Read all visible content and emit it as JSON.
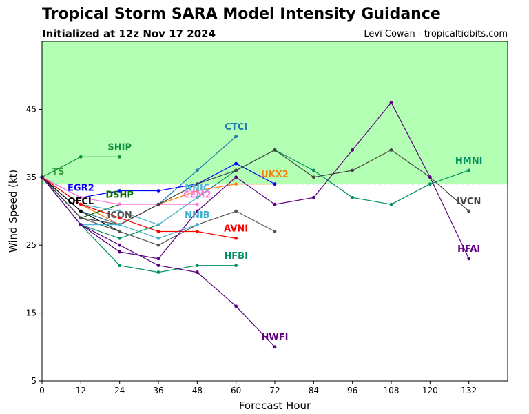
{
  "header": {
    "title": "Tropical Storm SARA Model Intensity Guidance",
    "subtitle": "Initialized at 12z Nov 17 2024",
    "credit": "Levi Cowan - tropicaltidbits.com"
  },
  "chart_data": {
    "type": "line",
    "title": "Tropical Storm SARA Model Intensity Guidance",
    "subtitle": "Initialized at 12z Nov 17 2024",
    "xlabel": "Forecast Hour",
    "ylabel": "Wind Speed (kt)",
    "xlim": [
      0,
      144
    ],
    "ylim": [
      5,
      55
    ],
    "xticks": [
      0,
      12,
      24,
      36,
      48,
      60,
      72,
      84,
      96,
      108,
      120,
      132
    ],
    "yticks": [
      5,
      15,
      25,
      35,
      45
    ],
    "ts_band": {
      "label": "TS",
      "from": 34,
      "to": 55,
      "color": "#b3ffb3"
    },
    "series": [
      {
        "name": "SHIP",
        "color": "#109040",
        "x": [
          0,
          12,
          24
        ],
        "y": [
          35,
          38,
          38
        ],
        "label_at": [
          24,
          39
        ]
      },
      {
        "name": "CTCI",
        "color": "#1f77b4",
        "x": [
          0,
          12,
          24,
          36,
          48,
          60
        ],
        "y": [
          35,
          30,
          28,
          31,
          36,
          41
        ],
        "label_at": [
          60,
          42
        ]
      },
      {
        "name": "HMNI",
        "color": "#009060",
        "x": [
          0,
          12,
          24,
          36,
          48,
          60,
          72,
          84,
          96,
          108,
          120,
          132
        ],
        "y": [
          35,
          28,
          26,
          28,
          32,
          36,
          39,
          36,
          32,
          31,
          34,
          36
        ],
        "label_at": [
          132,
          37
        ]
      },
      {
        "name": "UKX2",
        "color": "#ff7f0e",
        "x": [
          0,
          12,
          24,
          36,
          48,
          60,
          72
        ],
        "y": [
          35,
          31,
          28,
          31,
          33,
          34,
          34
        ],
        "label_at": [
          72,
          35
        ]
      },
      {
        "name": "EGR2",
        "color": "#0000ff",
        "x": [
          0,
          12,
          24,
          36,
          48,
          60,
          72
        ],
        "y": [
          35,
          32,
          33,
          33,
          34,
          37,
          34
        ],
        "label_at": [
          12,
          33
        ]
      },
      {
        "name": "DSHP",
        "color": "#007000",
        "x": [
          0,
          12,
          24
        ],
        "y": [
          35,
          29,
          31
        ],
        "label_at": [
          24,
          32
        ]
      },
      {
        "name": "NNIC",
        "color": "#4eb3d3",
        "x": [
          0,
          12,
          24,
          36,
          48
        ],
        "y": [
          35,
          31,
          30,
          28,
          32
        ],
        "label_at": [
          48,
          33
        ]
      },
      {
        "name": "CEM2",
        "color": "#ff77dd",
        "x": [
          0,
          12,
          24,
          36,
          48
        ],
        "y": [
          35,
          32,
          31,
          31,
          31
        ],
        "label_at": [
          48,
          32
        ]
      },
      {
        "name": "OFCL",
        "color": "#000000",
        "x": [
          0,
          12,
          24
        ],
        "y": [
          35,
          30,
          27
        ],
        "label_at": [
          12,
          31
        ]
      },
      {
        "name": "ICON",
        "color": "#555555",
        "x": [
          0,
          12,
          24,
          36,
          48,
          60,
          72
        ],
        "y": [
          35,
          29,
          27,
          25,
          28,
          30,
          27
        ],
        "label_at": [
          24,
          29
        ]
      },
      {
        "name": "IVCN",
        "color": "#444444",
        "x": [
          0,
          12,
          24,
          36,
          48,
          60,
          72,
          84,
          96,
          108,
          120,
          132
        ],
        "y": [
          35,
          29,
          28,
          31,
          34,
          36,
          39,
          35,
          36,
          39,
          35,
          30
        ],
        "label_at": [
          132,
          31
        ]
      },
      {
        "name": "NNIB",
        "color": "#3aaecc",
        "x": [
          0,
          12,
          24,
          36,
          48
        ],
        "y": [
          35,
          28,
          28,
          26,
          28
        ],
        "label_at": [
          48,
          29
        ]
      },
      {
        "name": "AVNI",
        "color": "#ff0000",
        "x": [
          0,
          12,
          24,
          36,
          48,
          60
        ],
        "y": [
          35,
          31,
          29,
          27,
          27,
          26
        ],
        "label_at": [
          60,
          27
        ]
      },
      {
        "name": "HFBI",
        "color": "#009060",
        "x": [
          0,
          12,
          24,
          36,
          48,
          60
        ],
        "y": [
          35,
          28,
          22,
          21,
          22,
          22
        ],
        "label_at": [
          60,
          23
        ]
      },
      {
        "name": "HFAI",
        "color": "#5c0080",
        "x": [
          0,
          12,
          24,
          36,
          48,
          60,
          72,
          84,
          96,
          108,
          120,
          132
        ],
        "y": [
          35,
          28,
          24,
          23,
          30,
          35,
          31,
          32,
          39,
          46,
          35,
          23
        ],
        "label_at": [
          132,
          24
        ]
      },
      {
        "name": "HWFI",
        "color": "#5c0080",
        "x": [
          0,
          12,
          24,
          36,
          48,
          60,
          72
        ],
        "y": [
          35,
          28,
          25,
          22,
          21,
          16,
          10
        ],
        "label_at": [
          72,
          11
        ]
      }
    ]
  }
}
